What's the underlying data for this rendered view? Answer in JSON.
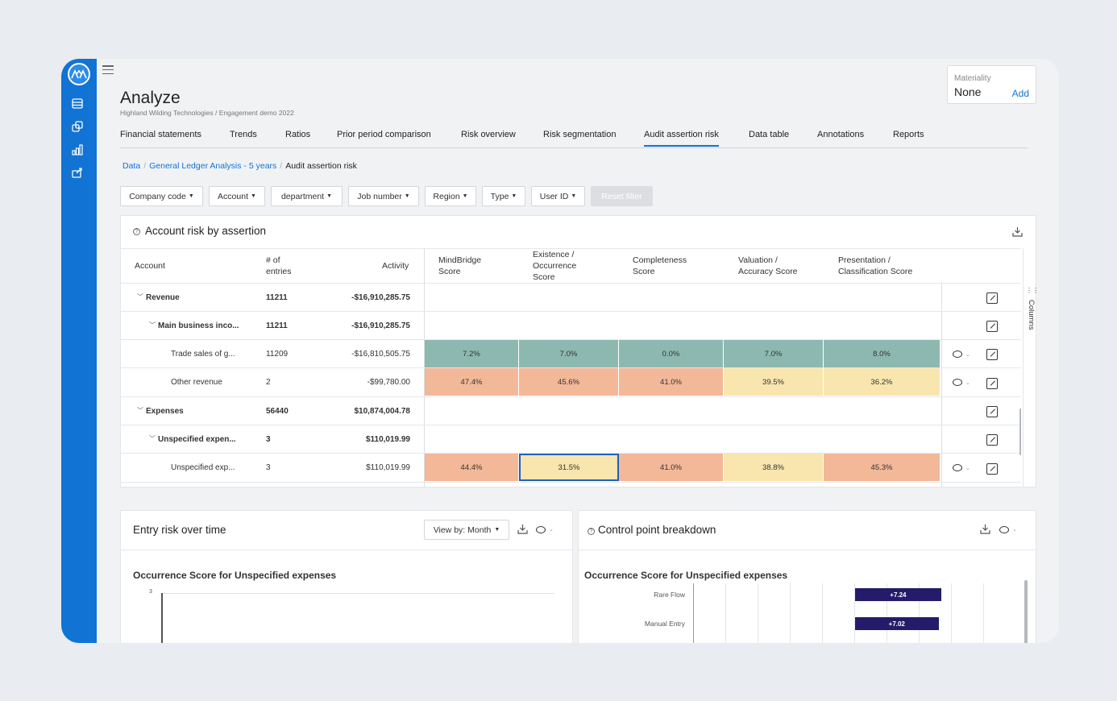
{
  "header": {
    "title": "Analyze",
    "subtitle": "Highland Wilding Technologies / Engagement demo 2022",
    "materiality_label": "Materiality",
    "materiality_value": "None",
    "materiality_add": "Add"
  },
  "tabs": [
    {
      "label": "Financial statements"
    },
    {
      "label": "Trends"
    },
    {
      "label": "Ratios"
    },
    {
      "label": "Prior period comparison"
    },
    {
      "label": "Risk overview"
    },
    {
      "label": "Risk segmentation"
    },
    {
      "label": "Audit assertion risk",
      "active": true
    },
    {
      "label": "Data table"
    },
    {
      "label": "Annotations"
    },
    {
      "label": "Reports"
    }
  ],
  "breadcrumb": {
    "items": [
      "Data",
      "General Ledger Analysis - 5 years"
    ],
    "current": "Audit assertion risk"
  },
  "filters": [
    "Company code",
    "Account",
    "department",
    "Job number",
    "Region",
    "Type",
    "User ID"
  ],
  "reset_filter": "Reset filter",
  "account_panel": {
    "title": "Account risk by assertion",
    "columns_label": "Columns",
    "headers": {
      "account": "Account",
      "entries_1": "# of",
      "entries_2": "entries",
      "activity": "Activity",
      "mindbridge_1": "MindBridge",
      "mindbridge_2": "Score",
      "existence_1": "Existence /",
      "existence_2": "Occurrence",
      "existence_3": "Score",
      "completeness_1": "Completeness",
      "completeness_2": "Score",
      "valuation_1": "Valuation /",
      "valuation_2": "Accuracy Score",
      "presentation_1": "Presentation /",
      "presentation_2": "Classification Score"
    },
    "rows": [
      {
        "account": "Revenue",
        "entries": "11211",
        "activity": "-$16,910,285.75"
      },
      {
        "account": "Main business inco...",
        "entries": "11211",
        "activity": "-$16,910,285.75"
      },
      {
        "account": "Trade sales of g...",
        "entries": "11209",
        "activity": "-$16,810,505.75",
        "scores": [
          "7.2%",
          "7.0%",
          "0.0%",
          "7.0%",
          "8.0%"
        ]
      },
      {
        "account": "Other revenue",
        "entries": "2",
        "activity": "-$99,780.00",
        "scores": [
          "47.4%",
          "45.6%",
          "41.0%",
          "39.5%",
          "36.2%"
        ]
      },
      {
        "account": "Expenses",
        "entries": "56440",
        "activity": "$10,874,004.78"
      },
      {
        "account": "Unspecified expen...",
        "entries": "3",
        "activity": "$110,019.99"
      },
      {
        "account": "Unspecified exp...",
        "entries": "3",
        "activity": "$110,019.99",
        "scores": [
          "44.4%",
          "31.5%",
          "41.0%",
          "38.8%",
          "45.3%"
        ]
      }
    ],
    "colors": {
      "low": "#8db8b0",
      "high": "#f2b898",
      "mid": "#f8e6ae",
      "selected_border": "#1f5fbf"
    }
  },
  "entry_risk_panel": {
    "title": "Entry risk over time",
    "view_by": "View by: Month",
    "chart_title": "Occurrence Score for Unspecified expenses",
    "y_tick_top": "3"
  },
  "control_point_panel": {
    "title": "Control point breakdown",
    "chart_title": "Occurrence Score for Unspecified expenses"
  },
  "chart_data": {
    "type": "bar",
    "title": "Occurrence Score for Unspecified expenses",
    "orientation": "horizontal",
    "categories": [
      "Rare Flow",
      "Manual Entry"
    ],
    "values": [
      7.24,
      7.02
    ],
    "data_labels": [
      "+7.24",
      "+7.02"
    ],
    "bar_color": "#241b6b"
  }
}
